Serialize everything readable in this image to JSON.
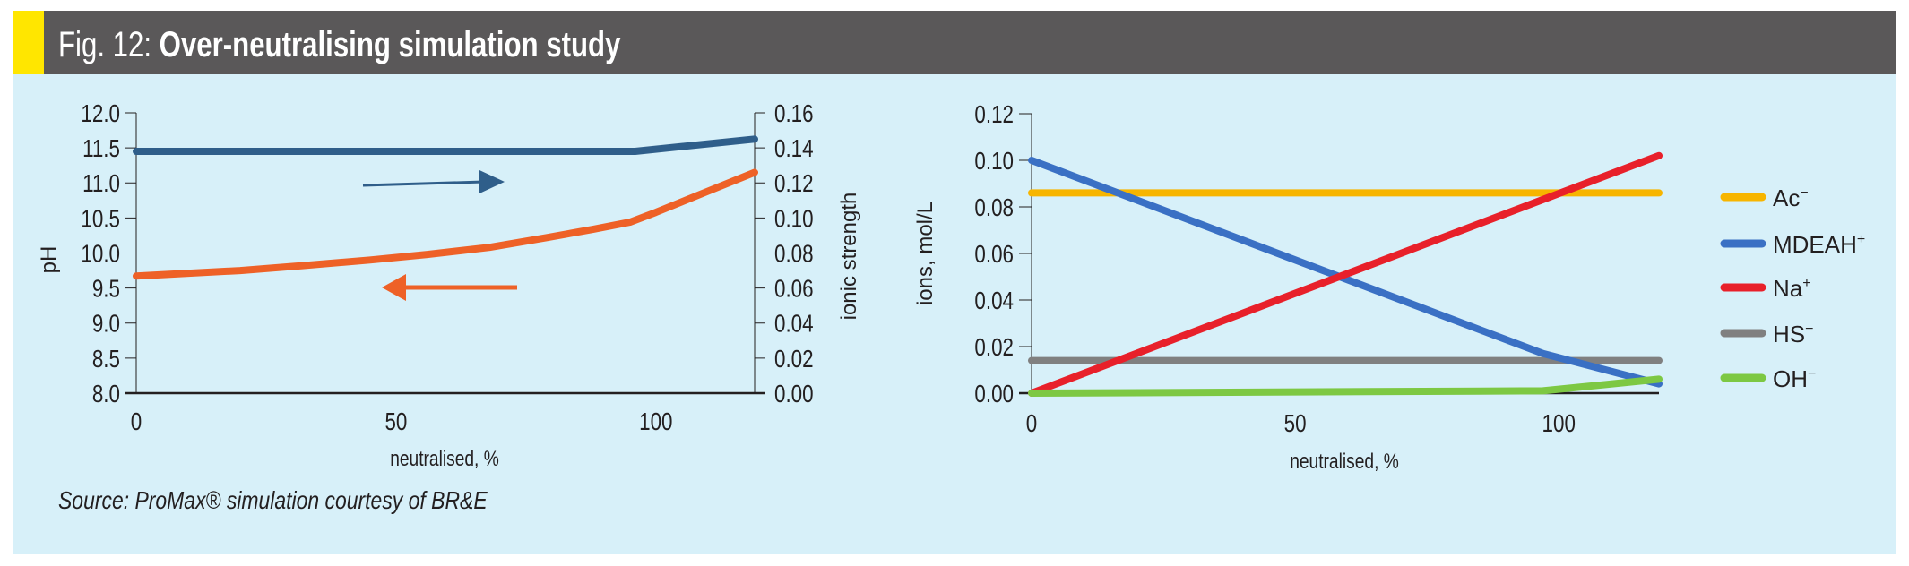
{
  "header": {
    "fig_label": "Fig. 12:",
    "title": "Over-neutralising simulation study"
  },
  "source": "Source: ProMax® simulation courtesy of BR&E",
  "colors": {
    "accent_yellow": "#ffe600",
    "header_bg": "#5a5859",
    "panel_bg": "#d7f0f9"
  },
  "chart_data": [
    {
      "type": "line",
      "title": "",
      "xlabel": "neutralised, %",
      "ylabel": "pH",
      "y2label": "ionic strength",
      "xlim": [
        0,
        119
      ],
      "ylim": [
        8.0,
        12.0
      ],
      "y2lim": [
        0.0,
        0.16
      ],
      "xticks": [
        "0",
        "50",
        "100"
      ],
      "xtick_values": [
        0,
        50,
        100
      ],
      "yticks": [
        "8.0",
        "8.5",
        "9.0",
        "9.5",
        "10.0",
        "10.5",
        "11.0",
        "11.5",
        "12.0"
      ],
      "y2ticks": [
        "0.00",
        "0.02",
        "0.04",
        "0.06",
        "0.08",
        "0.10",
        "0.12",
        "0.14",
        "0.16"
      ],
      "series": [
        {
          "name": "pH",
          "axis": "left",
          "color": "#ee6127",
          "x": [
            0,
            20,
            32,
            45,
            56,
            68,
            79,
            88,
            95,
            100,
            110,
            119
          ],
          "y": [
            9.67,
            9.75,
            9.82,
            9.9,
            9.98,
            10.08,
            10.22,
            10.34,
            10.44,
            10.58,
            10.88,
            11.15
          ]
        },
        {
          "name": "ionic strength",
          "axis": "right",
          "color": "#2f5e8a",
          "x": [
            0,
            50,
            96,
            119
          ],
          "y": [
            0.138,
            0.138,
            0.138,
            0.145
          ]
        }
      ],
      "annotations": [
        {
          "type": "arrow",
          "direction": "right",
          "color": "#2f5e8a",
          "meaning": "ionic strength on right axis"
        },
        {
          "type": "arrow",
          "direction": "left",
          "color": "#ee6127",
          "meaning": "pH on left axis"
        }
      ]
    },
    {
      "type": "line",
      "title": "",
      "xlabel": "neutralised, %",
      "ylabel": "ions, mol/L",
      "xlim": [
        0,
        119
      ],
      "ylim": [
        0.0,
        0.12
      ],
      "xticks": [
        "0",
        "50",
        "100"
      ],
      "xtick_values": [
        0,
        50,
        100
      ],
      "yticks": [
        "0.00",
        "0.02",
        "0.04",
        "0.06",
        "0.08",
        "0.10",
        "0.12"
      ],
      "legend_position": "right",
      "series": [
        {
          "name": "Ac",
          "sup": "−",
          "color": "#f7b500",
          "x": [
            0,
            119
          ],
          "y": [
            0.086,
            0.086
          ]
        },
        {
          "name": "MDEAH",
          "sup": "+",
          "color": "#3a70c4",
          "x": [
            0,
            97,
            119
          ],
          "y": [
            0.1,
            0.017,
            0.004
          ]
        },
        {
          "name": "Na",
          "sup": "+",
          "color": "#e8202a",
          "x": [
            0,
            119
          ],
          "y": [
            0.0,
            0.102
          ]
        },
        {
          "name": "HS",
          "sup": "−",
          "color": "#808080",
          "x": [
            0,
            119
          ],
          "y": [
            0.014,
            0.014
          ]
        },
        {
          "name": "OH",
          "sup": "−",
          "color": "#7dc843",
          "x": [
            0,
            97,
            119
          ],
          "y": [
            0.0,
            0.001,
            0.006
          ]
        }
      ]
    }
  ]
}
